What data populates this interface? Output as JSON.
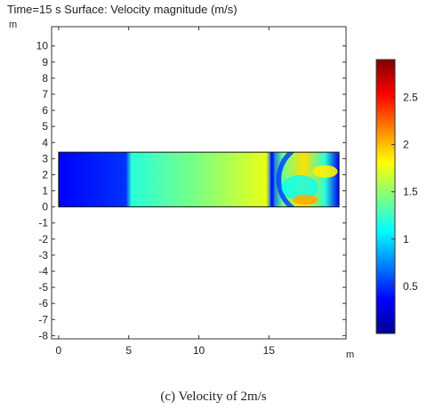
{
  "header": {
    "title": "Time=15 s  Surface: Velocity magnitude (m/s)"
  },
  "caption": "(c) Velocity of 2m/s",
  "chart_data": {
    "type": "heatmap",
    "title": "Time=15 s  Surface: Velocity magnitude (m/s)",
    "x_unit": "m",
    "y_unit": "m",
    "xlim": [
      -0.5,
      20.5
    ],
    "ylim": [
      -8.2,
      11.2
    ],
    "x_ticks": [
      0,
      5,
      10,
      15
    ],
    "y_ticks": [
      10,
      9,
      8,
      7,
      6,
      5,
      4,
      3,
      2,
      1,
      0,
      -1,
      -2,
      -3,
      -4,
      -5,
      -6,
      -7,
      -8
    ],
    "domain": {
      "x": [
        0,
        20
      ],
      "y": [
        0,
        3.4
      ]
    },
    "field_profile_x": [
      0,
      4.8,
      5.2,
      10,
      14.8,
      15.2,
      16,
      17.5,
      19,
      20
    ],
    "field_profile_value": [
      0.35,
      0.5,
      1.2,
      1.45,
      1.75,
      0.6,
      1.4,
      1.9,
      1.2,
      0.35
    ],
    "colorbar": {
      "min": 0,
      "max": 2.9,
      "ticks": [
        0.5,
        1,
        1.5,
        2,
        2.5
      ],
      "stops": [
        "#00008f",
        "#0000ff",
        "#0080ff",
        "#00ffff",
        "#80ff80",
        "#ffff00",
        "#ff8000",
        "#ff0000",
        "#800000"
      ]
    }
  }
}
